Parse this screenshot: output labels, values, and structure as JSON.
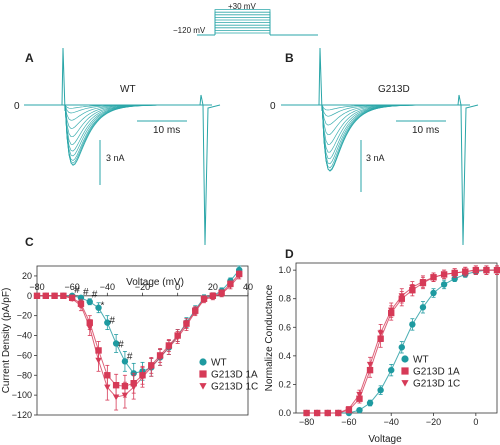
{
  "figure": {
    "protocol": {
      "top_label": "+30 mV",
      "left_label": "−120 mV"
    },
    "panel_a": {
      "letter": "A",
      "name": "WT",
      "zero": "0",
      "scale_time": "10 ms",
      "scale_current": "3 nA"
    },
    "panel_b": {
      "letter": "B",
      "name": "G213D",
      "zero": "0",
      "scale_time": "10 ms",
      "scale_current": "3 nA"
    },
    "panel_c": {
      "letter": "C"
    },
    "panel_d": {
      "letter": "D"
    }
  },
  "colors": {
    "teal": "#1e9aa0",
    "red": "#d63a57",
    "trace": "#2aa6a8"
  },
  "chart_data": [
    {
      "type": "line",
      "panel": "C",
      "xlabel": "Voltage (mV)",
      "ylabel": "Current Density (pA/pF)",
      "xlim": [
        -80,
        40
      ],
      "ylim": [
        -120,
        30
      ],
      "xticks": [
        -80,
        -60,
        -40,
        -20,
        0,
        20,
        40
      ],
      "xtick_labels": [
        "−80",
        "−60",
        "−40",
        "−20",
        "0",
        "20",
        "40"
      ],
      "yticks": [
        20,
        0,
        -20,
        -40,
        -60,
        -80,
        -100,
        -120
      ],
      "ytick_labels": [
        "20",
        "0",
        "−20",
        "−40",
        "−60",
        "−80",
        "−100",
        "−120"
      ],
      "legend_position": "right",
      "significance_marks": [
        "#",
        "#",
        "#",
        "*",
        "#",
        "#",
        "#"
      ],
      "series": [
        {
          "name": "WT",
          "marker": "circle",
          "color": "#1e9aa0",
          "x": [
            -80,
            -75,
            -70,
            -65,
            -60,
            -55,
            -50,
            -45,
            -40,
            -35,
            -30,
            -25,
            -20,
            -15,
            -10,
            -5,
            0,
            5,
            10,
            15,
            20,
            25,
            30,
            35
          ],
          "y": [
            0,
            0,
            0,
            0,
            0,
            -2,
            -6,
            -12,
            -27,
            -48,
            -66,
            -78,
            -76,
            -72,
            -62,
            -52,
            -40,
            -27,
            -14,
            -2,
            0,
            5,
            15,
            26
          ],
          "err": [
            0,
            0,
            0,
            0,
            1,
            2,
            3,
            5,
            7,
            9,
            10,
            10,
            9,
            9,
            8,
            7,
            6,
            5,
            4,
            3,
            3,
            3,
            3,
            4
          ]
        },
        {
          "name": "G213D 1A",
          "marker": "square",
          "color": "#d63a57",
          "x": [
            -80,
            -75,
            -70,
            -65,
            -60,
            -55,
            -50,
            -45,
            -40,
            -35,
            -30,
            -25,
            -20,
            -15,
            -10,
            -5,
            0,
            5,
            10,
            15,
            20,
            25,
            30,
            35
          ],
          "y": [
            0,
            0,
            0,
            0,
            -2,
            -8,
            -27,
            -55,
            -80,
            -90,
            -91,
            -88,
            -80,
            -70,
            -60,
            -50,
            -40,
            -28,
            -15,
            -3,
            0,
            3,
            12,
            22
          ],
          "err": [
            0,
            0,
            0,
            0,
            2,
            4,
            7,
            9,
            10,
            11,
            11,
            10,
            9,
            8,
            7,
            6,
            6,
            5,
            4,
            3,
            3,
            3,
            3,
            3
          ]
        },
        {
          "name": "G213D 1C",
          "marker": "triangle-down",
          "color": "#d63a57",
          "x": [
            -80,
            -75,
            -70,
            -65,
            -60,
            -55,
            -50,
            -45,
            -40,
            -35,
            -30,
            -25,
            -20,
            -15,
            -10,
            -5,
            0,
            5,
            10,
            15,
            20,
            25,
            30,
            35
          ],
          "y": [
            0,
            0,
            0,
            0,
            -3,
            -10,
            -32,
            -65,
            -92,
            -102,
            -100,
            -92,
            -82,
            -72,
            -62,
            -52,
            -42,
            -30,
            -16,
            -4,
            -1,
            2,
            10,
            20
          ],
          "err": [
            0,
            0,
            0,
            0,
            2,
            5,
            8,
            11,
            13,
            13,
            13,
            12,
            10,
            9,
            8,
            7,
            6,
            5,
            4,
            3,
            3,
            3,
            3,
            3
          ]
        }
      ]
    },
    {
      "type": "line",
      "panel": "D",
      "xlabel": "Voltage",
      "ylabel": "Normalize Conductance",
      "xlim": [
        -85,
        10
      ],
      "ylim": [
        0,
        1.05
      ],
      "xticks": [
        -80,
        -60,
        -40,
        -20,
        0
      ],
      "xtick_labels": [
        "−80",
        "−60",
        "−40",
        "−20",
        "0"
      ],
      "yticks": [
        0.0,
        0.2,
        0.4,
        0.6,
        0.8,
        1.0
      ],
      "ytick_labels": [
        "0.0",
        "0.2",
        "0.4",
        "0.6",
        "0.8",
        "1.0"
      ],
      "legend_position": "center",
      "series": [
        {
          "name": "WT",
          "marker": "circle",
          "color": "#1e9aa0",
          "x": [
            -80,
            -75,
            -70,
            -65,
            -60,
            -55,
            -50,
            -45,
            -40,
            -35,
            -30,
            -25,
            -20,
            -15,
            -10,
            -5,
            0,
            5,
            10
          ],
          "y": [
            0,
            0,
            0,
            0,
            0,
            0.02,
            0.07,
            0.16,
            0.3,
            0.46,
            0.62,
            0.74,
            0.84,
            0.9,
            0.94,
            0.97,
            0.99,
            1.0,
            1.0
          ],
          "err": [
            0,
            0,
            0,
            0,
            0,
            0.01,
            0.02,
            0.03,
            0.04,
            0.04,
            0.04,
            0.04,
            0.03,
            0.03,
            0.02,
            0.02,
            0.02,
            0.02,
            0.02
          ]
        },
        {
          "name": "G213D 1A",
          "marker": "square",
          "color": "#d63a57",
          "x": [
            -80,
            -75,
            -70,
            -65,
            -60,
            -55,
            -50,
            -45,
            -40,
            -35,
            -30,
            -25,
            -20,
            -15,
            -10,
            -5,
            0,
            5,
            10
          ],
          "y": [
            0,
            0,
            0,
            0,
            0.02,
            0.1,
            0.3,
            0.52,
            0.7,
            0.8,
            0.86,
            0.91,
            0.95,
            0.97,
            0.98,
            0.99,
            1.0,
            1.0,
            1.0
          ],
          "err": [
            0,
            0,
            0,
            0,
            0.01,
            0.03,
            0.05,
            0.06,
            0.05,
            0.05,
            0.04,
            0.04,
            0.03,
            0.03,
            0.03,
            0.03,
            0.03,
            0.03,
            0.03
          ]
        },
        {
          "name": "G213D 1C",
          "marker": "triangle-down",
          "color": "#d63a57",
          "x": [
            -80,
            -75,
            -70,
            -65,
            -60,
            -55,
            -50,
            -45,
            -40,
            -35,
            -30,
            -25,
            -20,
            -15,
            -10,
            -5,
            0,
            5,
            10
          ],
          "y": [
            0,
            0,
            0,
            0,
            0.03,
            0.13,
            0.34,
            0.56,
            0.72,
            0.82,
            0.88,
            0.92,
            0.95,
            0.97,
            0.98,
            0.99,
            1.0,
            1.0,
            1.0
          ],
          "err": [
            0,
            0,
            0,
            0,
            0.01,
            0.03,
            0.05,
            0.06,
            0.05,
            0.05,
            0.04,
            0.04,
            0.03,
            0.03,
            0.03,
            0.03,
            0.03,
            0.03,
            0.03
          ]
        }
      ]
    }
  ]
}
